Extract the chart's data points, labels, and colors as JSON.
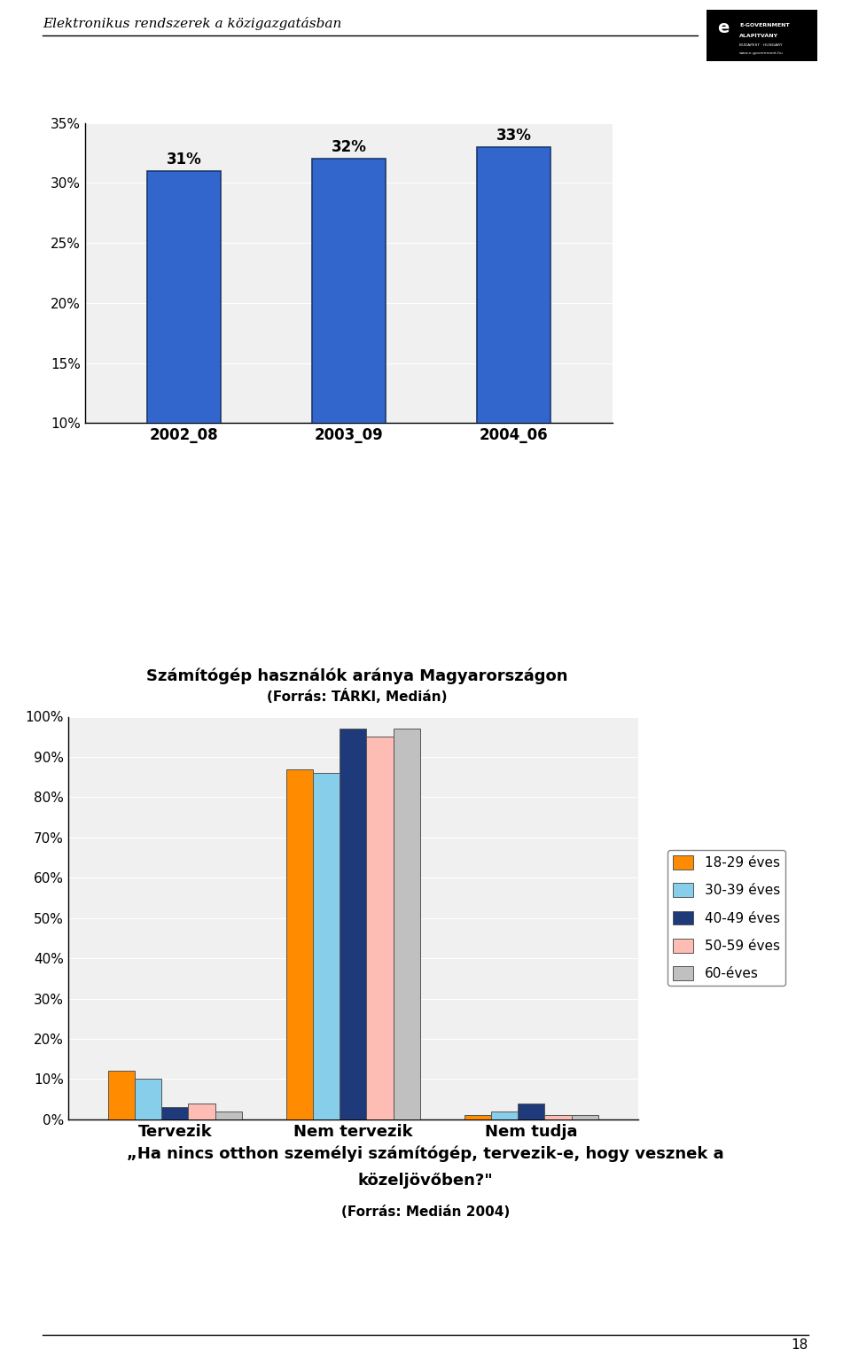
{
  "header_text": "Elektronikus rendszerek a közigazgatásban",
  "chart1": {
    "categories": [
      "2002_08",
      "2003_09",
      "2004_06"
    ],
    "values": [
      31,
      32,
      33
    ],
    "bar_color": "#3366CC",
    "bar_edge_color": "#1a3a6e",
    "ylim": [
      10,
      35
    ],
    "yticks": [
      10,
      15,
      20,
      25,
      30,
      35
    ],
    "title": "Számítógép használók aránya Magyarországon",
    "subtitle": "(Forrás: TÁRKI, Medián)"
  },
  "chart2": {
    "categories": [
      "Tervezik",
      "Nem tervezik",
      "Nem tudja"
    ],
    "series": {
      "18-29 éves": [
        12,
        87,
        1
      ],
      "30-39 éves": [
        10,
        86,
        2
      ],
      "40-49 éves": [
        3,
        97,
        4
      ],
      "50-59 éves": [
        4,
        95,
        1
      ],
      "60-éves": [
        2,
        97,
        1
      ]
    },
    "colors": {
      "18-29 éves": "#FF8C00",
      "30-39 éves": "#87CEEB",
      "40-49 éves": "#1F3A7A",
      "50-59 éves": "#FDBCB4",
      "60-éves": "#C0C0C0"
    },
    "ylim": [
      0,
      100
    ],
    "yticks": [
      0,
      10,
      20,
      30,
      40,
      50,
      60,
      70,
      80,
      90,
      100
    ]
  },
  "bottom_title_line1": "„Ha nincs otthon személyi számítógép, tervezik-e, hogy vesznek a",
  "bottom_title_line2": "közeljövőben?\"",
  "bottom_subtitle": "(Forrás: Medián 2004)",
  "page_number": "18",
  "background_color": "#FFFFFF"
}
